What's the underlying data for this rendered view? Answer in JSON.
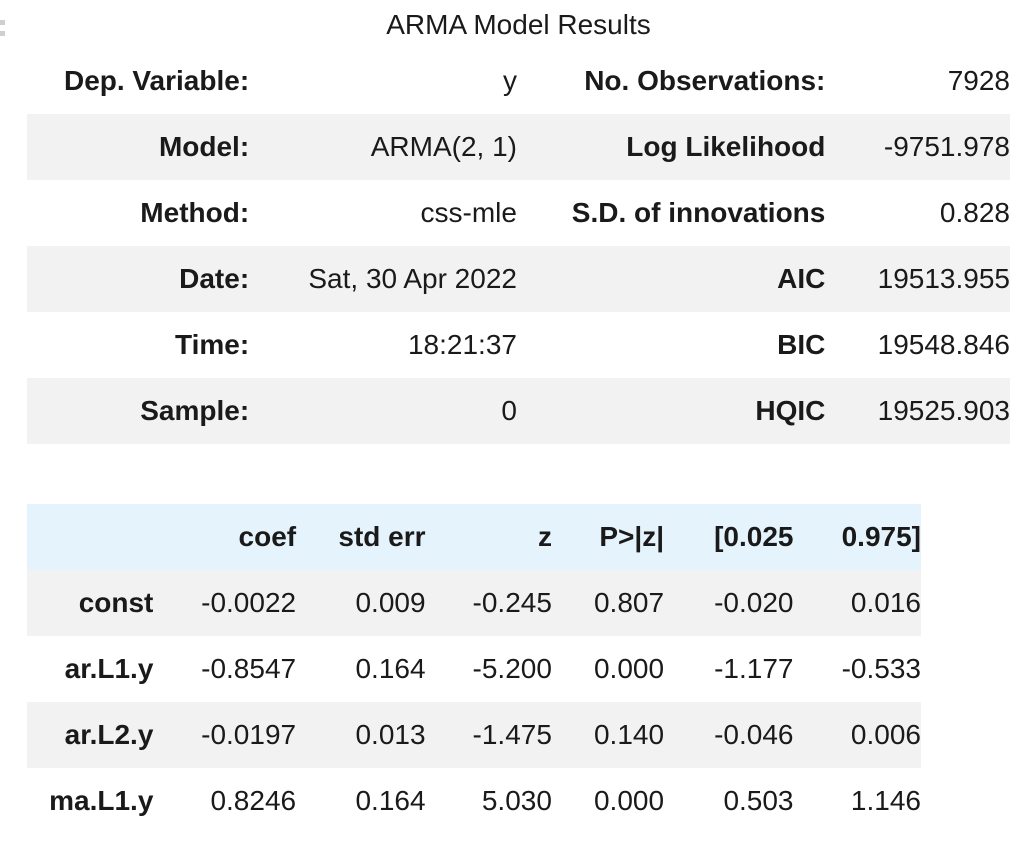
{
  "caption": "ARMA Model Results",
  "summary": {
    "rows": [
      {
        "label1": "Dep. Variable:",
        "value1": "y",
        "label2": "No. Observations:",
        "value2": "7928"
      },
      {
        "label1": "Model:",
        "value1": "ARMA(2, 1)",
        "label2": "Log Likelihood",
        "value2": "-9751.978"
      },
      {
        "label1": "Method:",
        "value1": "css-mle",
        "label2": "S.D. of innovations",
        "value2": "0.828"
      },
      {
        "label1": "Date:",
        "value1": "Sat, 30 Apr 2022",
        "label2": "AIC",
        "value2": "19513.955"
      },
      {
        "label1": "Time:",
        "value1": "18:21:37",
        "label2": "BIC",
        "value2": "19548.846"
      },
      {
        "label1": "Sample:",
        "value1": "0",
        "label2": "HQIC",
        "value2": "19525.903"
      }
    ]
  },
  "coefficients": {
    "headers": [
      "",
      "coef",
      "std err",
      "z",
      "P>|z|",
      "[0.025",
      "0.975]"
    ],
    "rows": [
      {
        "name": "const",
        "coef": "-0.0022",
        "std_err": "0.009",
        "z": "-0.245",
        "p": "0.807",
        "lower": "-0.020",
        "upper": "0.016"
      },
      {
        "name": "ar.L1.y",
        "coef": "-0.8547",
        "std_err": "0.164",
        "z": "-5.200",
        "p": "0.000",
        "lower": "-1.177",
        "upper": "-0.533"
      },
      {
        "name": "ar.L2.y",
        "coef": "-0.0197",
        "std_err": "0.013",
        "z": "-1.475",
        "p": "0.140",
        "lower": "-0.046",
        "upper": "0.006"
      },
      {
        "name": "ma.L1.y",
        "coef": "0.8246",
        "std_err": "0.164",
        "z": "5.030",
        "p": "0.000",
        "lower": "0.503",
        "upper": "1.146"
      }
    ]
  },
  "colors": {
    "header_bg": "#e5f4fc",
    "stripe_bg": "#f2f2f2"
  }
}
